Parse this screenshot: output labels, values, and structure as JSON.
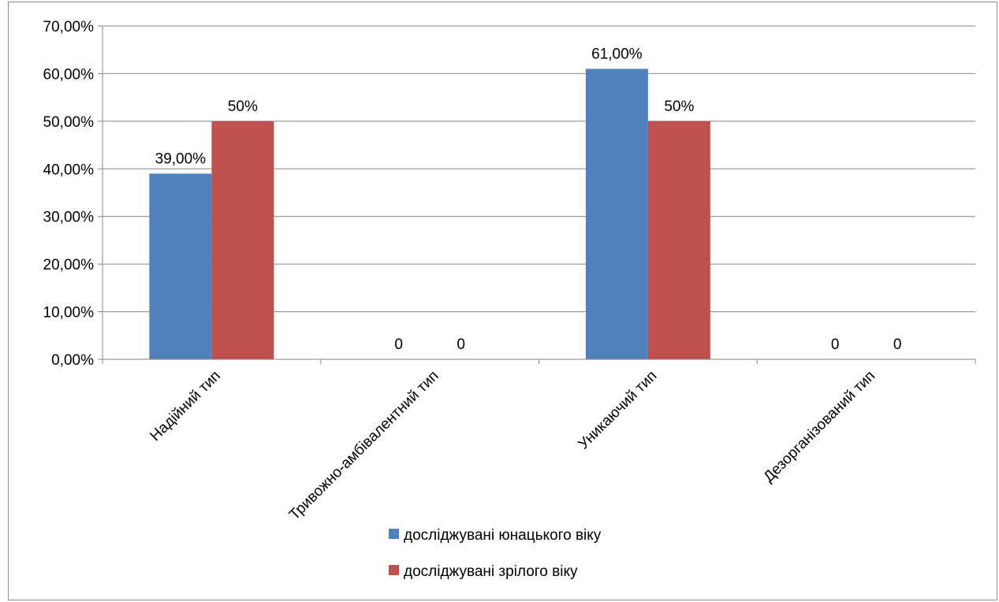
{
  "chart_data": {
    "type": "bar",
    "categories": [
      "Надійний тип",
      "Тривожно-амбівалентний тип",
      "Уникаючий тип",
      "Дезорганізований тип"
    ],
    "series": [
      {
        "name": "досліджувані юнацького віку",
        "color": "#4f81bd",
        "values": [
          0.39,
          0,
          0.61,
          0
        ],
        "labels": [
          "39,00%",
          "0",
          "61,00%",
          "0"
        ]
      },
      {
        "name": "досліджувані зрілого віку",
        "color": "#c0504d",
        "values": [
          0.5,
          0,
          0.5,
          0
        ],
        "labels": [
          "50%",
          "0",
          "50%",
          "0"
        ]
      }
    ],
    "ylim": [
      0,
      0.7
    ],
    "yticks": [
      0,
      0.1,
      0.2,
      0.3,
      0.4,
      0.5,
      0.6,
      0.7
    ],
    "ytick_labels": [
      "0,00%",
      "10,00%",
      "20,00%",
      "30,00%",
      "40,00%",
      "50,00%",
      "60,00%",
      "70,00%"
    ],
    "grid": true,
    "legend_position": "bottom-center",
    "xlabel": "",
    "ylabel": "",
    "title": ""
  }
}
